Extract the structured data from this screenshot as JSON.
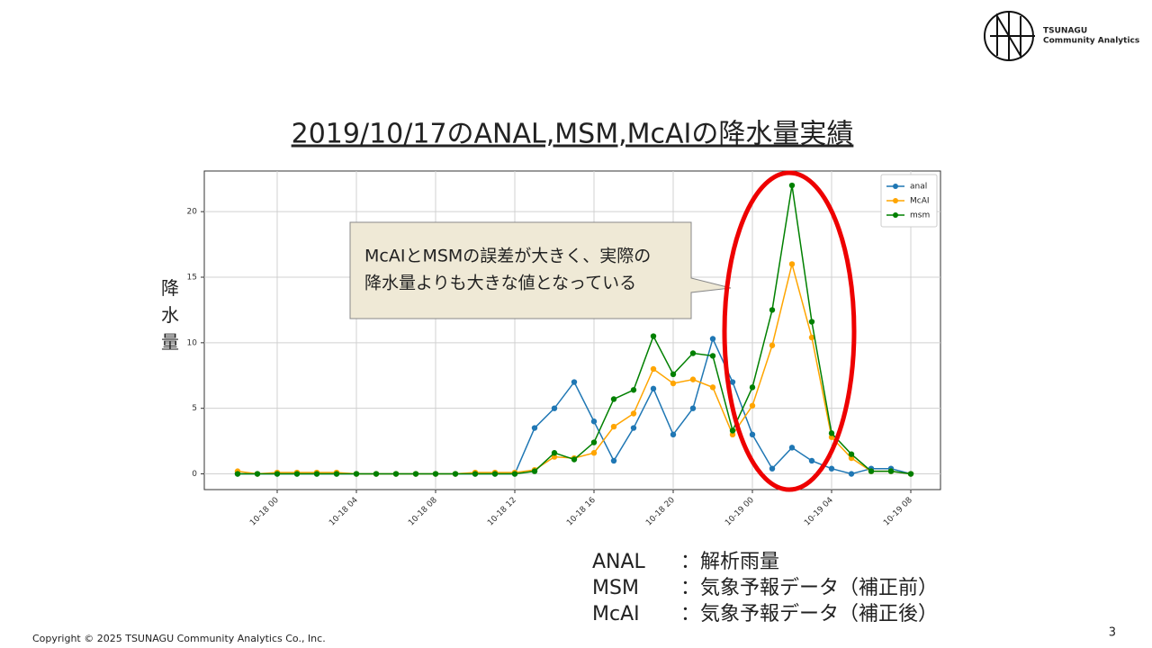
{
  "title": "2019/10/17のANAL,MSM,McAIの降水量実績",
  "logo": {
    "line1": "TSUNAGU",
    "line2": "Community Analytics"
  },
  "notes": [
    [
      "ANAL",
      "：解析雨量"
    ],
    [
      "MSM",
      "：気象予報データ（補正前）"
    ],
    [
      "McAI",
      "：気象予報データ（補正後）"
    ]
  ],
  "footer": "Copyright © 2025 TSUNAGU Community Analytics Co., Inc.",
  "page_number": "3",
  "chart_data": {
    "type": "line",
    "y_label": "降水量",
    "annotation": [
      "McAIとMSMの誤差が大きく、実際の",
      "降水量よりも大きな値となっている"
    ],
    "categories": [
      null,
      null,
      "10-18 00",
      null,
      null,
      null,
      "10-18 04",
      null,
      null,
      null,
      "10-18 08",
      null,
      null,
      null,
      "10-18 12",
      null,
      null,
      null,
      "10-18 16",
      null,
      null,
      null,
      "10-18 20",
      null,
      null,
      null,
      "10-19 00",
      null,
      null,
      null,
      "10-19 04",
      null,
      null,
      null,
      "10-19 08"
    ],
    "series": [
      {
        "name": "anal",
        "color": "#1f77b4",
        "values": [
          0,
          0,
          0,
          0,
          0,
          0,
          0,
          0,
          0,
          0,
          0,
          0,
          0,
          0,
          0,
          3.5,
          5,
          7,
          4,
          1,
          3.5,
          6.5,
          3,
          5,
          10.3,
          7,
          3,
          0.4,
          2,
          1,
          0.4,
          0,
          0.4,
          0.4,
          0
        ]
      },
      {
        "name": "McAI",
        "color": "#ffa500",
        "values": [
          0.2,
          0,
          0.1,
          0.1,
          0.1,
          0.1,
          0,
          0,
          0,
          0,
          0,
          0,
          0.1,
          0.1,
          0.1,
          0.3,
          1.3,
          1.2,
          1.6,
          3.6,
          4.6,
          8,
          6.9,
          7.2,
          6.6,
          3,
          5.2,
          9.8,
          16,
          10.4,
          2.8,
          1.2,
          0.2,
          0.2,
          0
        ]
      },
      {
        "name": "msm",
        "color": "#008000",
        "values": [
          0,
          0,
          0,
          0,
          0,
          0,
          0,
          0,
          0,
          0,
          0,
          0,
          0,
          0,
          0,
          0.2,
          1.6,
          1.1,
          2.4,
          5.7,
          6.4,
          10.5,
          7.6,
          9.2,
          9,
          3.3,
          6.6,
          12.5,
          22,
          11.6,
          3.1,
          1.5,
          0.2,
          0.2,
          0
        ]
      }
    ],
    "ylim": [
      -1.2,
      23.1
    ],
    "yticks": [
      0,
      5,
      10,
      15,
      20
    ],
    "grid": true,
    "legend": "upper right"
  }
}
